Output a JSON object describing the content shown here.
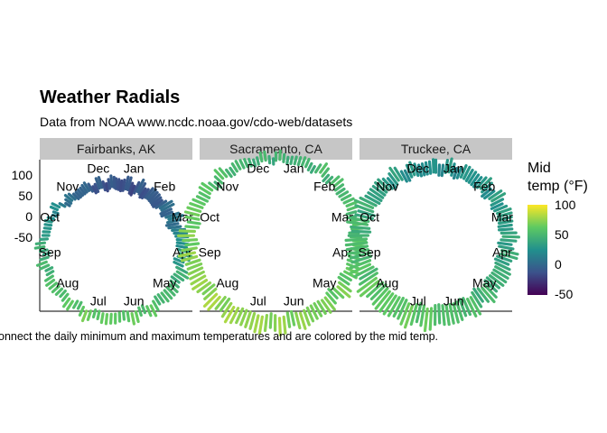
{
  "chart_data": {
    "type": "radial",
    "title": "Weather Radials",
    "subtitle": "Data from NOAA www.ncdc.noaa.gov/cdo-web/datasets",
    "caption": "onnect the daily minimum and maximum temperatures and are colored by the mid temp.",
    "months": [
      "Jan",
      "Feb",
      "Mar",
      "Apr",
      "May",
      "Jun",
      "Jul",
      "Aug",
      "Sep",
      "Oct",
      "Nov",
      "Dec"
    ],
    "y_ticks": [
      "100",
      "50",
      "0",
      "-50"
    ],
    "y_range": [
      -100,
      120
    ],
    "legend": {
      "title_line1": "Mid",
      "title_line2": "temp (°F)",
      "range": [
        -50,
        100
      ],
      "ticks": [
        "100",
        "50",
        "0",
        "-50"
      ],
      "colors": [
        "#440154",
        "#3b528b",
        "#21908d",
        "#5dc962",
        "#fde725"
      ]
    },
    "panels": [
      {
        "label": "Fairbanks, AK",
        "monthly_min": [
          -25,
          -20,
          -8,
          18,
          38,
          50,
          53,
          47,
          35,
          18,
          -8,
          -20
        ],
        "monthly_max": [
          0,
          5,
          20,
          42,
          60,
          70,
          72,
          65,
          52,
          30,
          8,
          0
        ]
      },
      {
        "label": "Sacramento, CA",
        "monthly_min": [
          38,
          40,
          43,
          46,
          50,
          55,
          58,
          58,
          56,
          50,
          42,
          38
        ],
        "monthly_max": [
          54,
          60,
          65,
          72,
          80,
          88,
          93,
          92,
          88,
          78,
          63,
          54
        ]
      },
      {
        "label": "Truckee, CA",
        "monthly_min": [
          12,
          14,
          18,
          22,
          28,
          33,
          38,
          37,
          30,
          24,
          18,
          12
        ],
        "monthly_max": [
          38,
          42,
          47,
          55,
          64,
          74,
          84,
          84,
          75,
          64,
          48,
          38
        ]
      }
    ]
  }
}
